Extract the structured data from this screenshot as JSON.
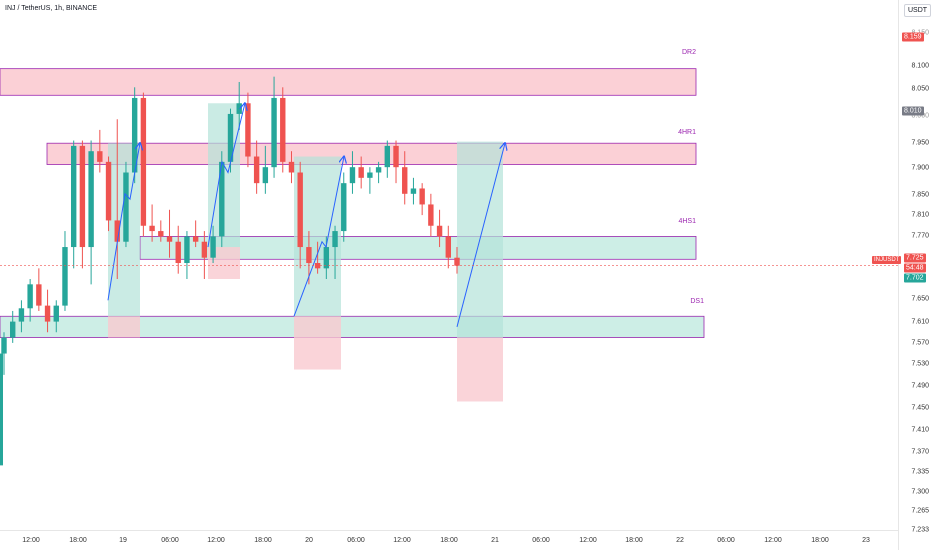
{
  "header": {
    "symbol_title": "INJ / TetherUS, 1h, BINANCE",
    "currency": "USDT"
  },
  "colors": {
    "up": "#26a69a",
    "down": "#ef5350",
    "resistance_fill": "#fbd0d6",
    "support_fill": "#cdeee6",
    "zone_border": "#9c27b0",
    "arrow": "#2962ff",
    "stop_zone": "#f9c9cf",
    "target_zone": "#b3e3d8",
    "neutral_zone": "#bdbdbd"
  },
  "price_axis": {
    "ticks": [
      "8.100",
      "8.050",
      "7.950",
      "7.900",
      "7.850",
      "7.810",
      "7.770",
      "7.650",
      "7.610",
      "7.570",
      "7.530",
      "7.490",
      "7.450",
      "7.410",
      "7.370",
      "7.335",
      "7.300",
      "7.265",
      "7.233"
    ],
    "partial_ticks": [
      "8.150",
      "8.000"
    ]
  },
  "price_labels": {
    "top": {
      "text": "8.159",
      "bg": "#ef5350",
      "fg": "#ffffff"
    },
    "mid": {
      "text": "8.010",
      "bg": "#787b86",
      "fg": "#ffffff"
    },
    "symbol": {
      "text": "INJUSDT",
      "bg": "#ef5350",
      "fg": "#ffffff"
    },
    "current": {
      "text": "7.725",
      "bg": "#ef5350",
      "fg": "#ffffff"
    },
    "countdown": {
      "text": "54:48",
      "bg": "#ef5350",
      "fg": "#ffffff"
    },
    "low": {
      "text": "7.702",
      "bg": "#26a69a",
      "fg": "#ffffff"
    }
  },
  "time_axis": {
    "ticks": [
      "12:00",
      "18:00",
      "19",
      "06:00",
      "12:00",
      "18:00",
      "20",
      "06:00",
      "12:00",
      "18:00",
      "21",
      "06:00",
      "12:00",
      "18:00",
      "22",
      "06:00",
      "12:00",
      "18:00",
      "23"
    ]
  },
  "zones": {
    "dr2": "DR2",
    "hr1": "4HR1",
    "hs1": "4HS1",
    "ds1": "DS1"
  },
  "chart_data": {
    "type": "candlestick",
    "title": "INJ / TetherUS, 1h, BINANCE",
    "ylim": [
      7.233,
      8.19
    ],
    "current_price": 7.725,
    "candles": [
      {
        "o": 7.56,
        "h": 7.6,
        "l": 7.52,
        "c": 7.59
      },
      {
        "o": 7.59,
        "h": 7.64,
        "l": 7.58,
        "c": 7.62
      },
      {
        "o": 7.62,
        "h": 7.66,
        "l": 7.6,
        "c": 7.645
      },
      {
        "o": 7.645,
        "h": 7.7,
        "l": 7.62,
        "c": 7.69
      },
      {
        "o": 7.69,
        "h": 7.72,
        "l": 7.64,
        "c": 7.65
      },
      {
        "o": 7.65,
        "h": 7.68,
        "l": 7.6,
        "c": 7.62
      },
      {
        "o": 7.62,
        "h": 7.66,
        "l": 7.6,
        "c": 7.65
      },
      {
        "o": 7.65,
        "h": 7.79,
        "l": 7.64,
        "c": 7.76
      },
      {
        "o": 7.76,
        "h": 7.96,
        "l": 7.72,
        "c": 7.95
      },
      {
        "o": 7.95,
        "h": 7.96,
        "l": 7.72,
        "c": 7.76
      },
      {
        "o": 7.76,
        "h": 7.96,
        "l": 7.69,
        "c": 7.94
      },
      {
        "o": 7.94,
        "h": 7.98,
        "l": 7.9,
        "c": 7.92
      },
      {
        "o": 7.92,
        "h": 7.93,
        "l": 7.79,
        "c": 7.81
      },
      {
        "o": 7.81,
        "h": 8.0,
        "l": 7.7,
        "c": 7.77
      },
      {
        "o": 7.77,
        "h": 7.92,
        "l": 7.76,
        "c": 7.9
      },
      {
        "o": 7.9,
        "h": 8.06,
        "l": 7.88,
        "c": 8.04
      },
      {
        "o": 8.04,
        "h": 8.05,
        "l": 7.78,
        "c": 7.8
      },
      {
        "o": 7.8,
        "h": 7.84,
        "l": 7.77,
        "c": 7.79
      },
      {
        "o": 7.79,
        "h": 7.81,
        "l": 7.77,
        "c": 7.78
      },
      {
        "o": 7.78,
        "h": 7.83,
        "l": 7.74,
        "c": 7.77
      },
      {
        "o": 7.77,
        "h": 7.8,
        "l": 7.71,
        "c": 7.73
      },
      {
        "o": 7.73,
        "h": 7.79,
        "l": 7.7,
        "c": 7.78
      },
      {
        "o": 7.78,
        "h": 7.81,
        "l": 7.76,
        "c": 7.77
      },
      {
        "o": 7.77,
        "h": 7.79,
        "l": 7.7,
        "c": 7.74
      },
      {
        "o": 7.74,
        "h": 7.8,
        "l": 7.73,
        "c": 7.78
      },
      {
        "o": 7.78,
        "h": 7.94,
        "l": 7.76,
        "c": 7.92
      },
      {
        "o": 7.92,
        "h": 8.02,
        "l": 7.9,
        "c": 8.01
      },
      {
        "o": 8.01,
        "h": 8.07,
        "l": 7.98,
        "c": 8.03
      },
      {
        "o": 8.03,
        "h": 8.05,
        "l": 7.91,
        "c": 7.93
      },
      {
        "o": 7.93,
        "h": 7.96,
        "l": 7.86,
        "c": 7.88
      },
      {
        "o": 7.88,
        "h": 7.95,
        "l": 7.86,
        "c": 7.91
      },
      {
        "o": 7.91,
        "h": 8.08,
        "l": 7.89,
        "c": 8.04
      },
      {
        "o": 8.04,
        "h": 8.06,
        "l": 7.9,
        "c": 7.92
      },
      {
        "o": 7.92,
        "h": 7.94,
        "l": 7.88,
        "c": 7.9
      },
      {
        "o": 7.9,
        "h": 7.92,
        "l": 7.72,
        "c": 7.76
      },
      {
        "o": 7.76,
        "h": 7.79,
        "l": 7.69,
        "c": 7.73
      },
      {
        "o": 7.73,
        "h": 7.77,
        "l": 7.71,
        "c": 7.72
      },
      {
        "o": 7.72,
        "h": 7.78,
        "l": 7.7,
        "c": 7.76
      },
      {
        "o": 7.76,
        "h": 7.8,
        "l": 7.7,
        "c": 7.79
      },
      {
        "o": 7.79,
        "h": 7.9,
        "l": 7.77,
        "c": 7.88
      },
      {
        "o": 7.88,
        "h": 7.94,
        "l": 7.86,
        "c": 7.91
      },
      {
        "o": 7.91,
        "h": 7.93,
        "l": 7.87,
        "c": 7.89
      },
      {
        "o": 7.89,
        "h": 7.91,
        "l": 7.86,
        "c": 7.9
      },
      {
        "o": 7.9,
        "h": 7.92,
        "l": 7.88,
        "c": 7.91
      },
      {
        "o": 7.91,
        "h": 7.96,
        "l": 7.89,
        "c": 7.95
      },
      {
        "o": 7.95,
        "h": 7.96,
        "l": 7.88,
        "c": 7.91
      },
      {
        "o": 7.91,
        "h": 7.94,
        "l": 7.84,
        "c": 7.86
      },
      {
        "o": 7.86,
        "h": 7.89,
        "l": 7.84,
        "c": 7.87
      },
      {
        "o": 7.87,
        "h": 7.88,
        "l": 7.82,
        "c": 7.84
      },
      {
        "o": 7.84,
        "h": 7.86,
        "l": 7.78,
        "c": 7.8
      },
      {
        "o": 7.8,
        "h": 7.83,
        "l": 7.76,
        "c": 7.78
      },
      {
        "o": 7.78,
        "h": 7.8,
        "l": 7.72,
        "c": 7.74
      },
      {
        "o": 7.74,
        "h": 7.76,
        "l": 7.71,
        "c": 7.725
      }
    ]
  }
}
